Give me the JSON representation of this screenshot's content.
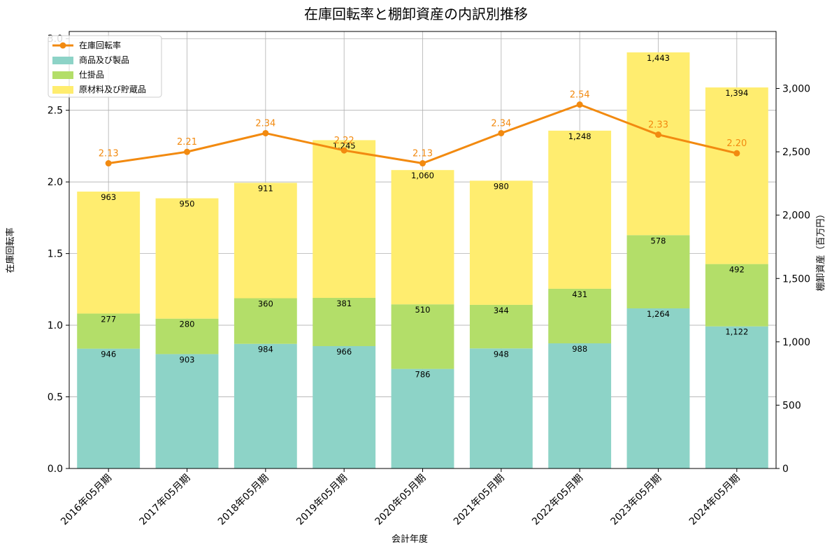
{
  "chart_data": {
    "type": "bar",
    "title": "在庫回転率と棚卸資産の内訳別推移",
    "xlabel": "会計年度",
    "ylabel_left": "在庫回転率",
    "ylabel_right": "棚卸資産（百万円）",
    "categories": [
      "2016年05月期",
      "2017年05月期",
      "2018年05月期",
      "2019年05月期",
      "2020年05月期",
      "2021年05月期",
      "2022年05月期",
      "2023年05月期",
      "2024年05月期"
    ],
    "left_ylim": [
      0,
      3.05
    ],
    "left_ticks": [
      "0.0",
      "0.5",
      "1.0",
      "1.5",
      "2.0",
      "2.5",
      "3.0"
    ],
    "right_ylim": [
      0,
      3450
    ],
    "right_ticks": [
      "0",
      "500",
      "1,000",
      "1,500",
      "2,000",
      "2,500",
      "3,000"
    ],
    "grid": true,
    "legend_position": "top-left",
    "stacked_series": [
      {
        "name": "商品及び製品",
        "color": "#8dd3c7",
        "values": [
          946,
          903,
          984,
          966,
          786,
          948,
          988,
          1264,
          1122
        ],
        "labels": [
          "946",
          "903",
          "984",
          "966",
          "786",
          "948",
          "988",
          "1,264",
          "1,122"
        ]
      },
      {
        "name": "仕掛品",
        "color": "#b3de69",
        "values": [
          277,
          280,
          360,
          381,
          510,
          344,
          431,
          578,
          492
        ],
        "labels": [
          "277",
          "280",
          "360",
          "381",
          "510",
          "344",
          "431",
          "578",
          "492"
        ]
      },
      {
        "name": "原材料及び貯蔵品",
        "color": "#ffed6f",
        "values": [
          963,
          950,
          911,
          1245,
          1060,
          980,
          1248,
          1443,
          1394
        ],
        "labels": [
          "963",
          "950",
          "911",
          "1,245",
          "1,060",
          "980",
          "1,248",
          "1,443",
          "1,394"
        ]
      }
    ],
    "line_series": {
      "name": "在庫回転率",
      "color": "#f28a10",
      "values": [
        2.13,
        2.21,
        2.34,
        2.22,
        2.13,
        2.34,
        2.54,
        2.33,
        2.2
      ],
      "labels": [
        "2.13",
        "2.21",
        "2.34",
        "2.22",
        "2.13",
        "2.34",
        "2.54",
        "2.33",
        "2.20"
      ]
    }
  }
}
